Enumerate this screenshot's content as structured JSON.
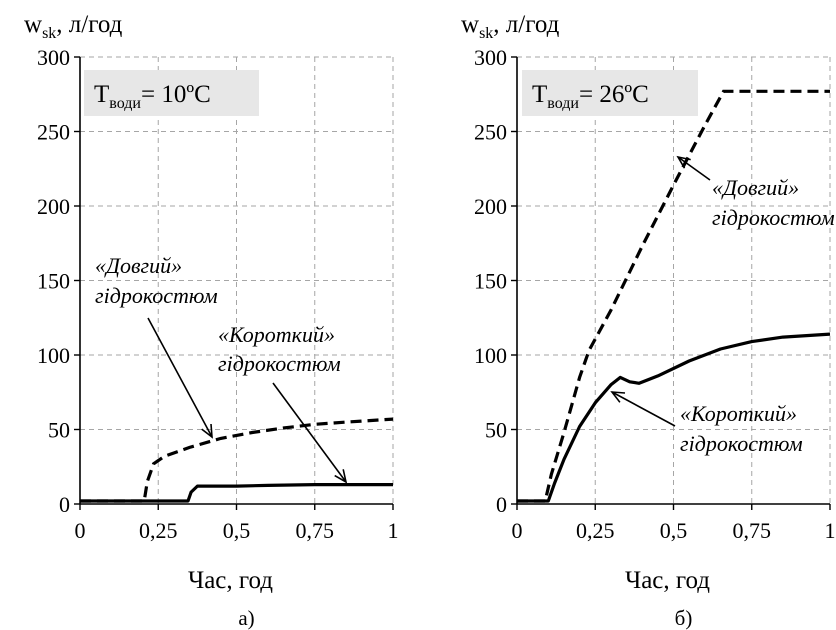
{
  "chart_data": [
    {
      "type": "line",
      "ylabel_main": "w",
      "ylabel_sub": "sk",
      "ylabel_rest": ", л/год",
      "xlabel": "Час, год",
      "caption": "а)",
      "condition_prefix": "T",
      "condition_sub": "води",
      "condition_value": "= 10ºC",
      "xlim": [
        0,
        1
      ],
      "ylim": [
        0,
        300
      ],
      "x_ticks": [
        "0",
        "0,25",
        "0,5",
        "0,75",
        "1"
      ],
      "y_ticks": [
        "0",
        "50",
        "100",
        "150",
        "200",
        "250",
        "300"
      ],
      "grid": true,
      "series": [
        {
          "label_line1": "«Довгий»",
          "label_line2": "гідрокостюм",
          "style": "dashed",
          "points": [
            [
              0,
              2
            ],
            [
              0.205,
              2
            ],
            [
              0.215,
              15
            ],
            [
              0.235,
              27
            ],
            [
              0.27,
              32
            ],
            [
              0.35,
              38
            ],
            [
              0.45,
              44
            ],
            [
              0.55,
              48
            ],
            [
              0.65,
              51
            ],
            [
              0.75,
              53.5
            ],
            [
              0.85,
              55
            ],
            [
              1,
              57
            ]
          ]
        },
        {
          "label_line1": "«Короткий»",
          "label_line2": "гідрокостюм",
          "style": "solid",
          "points": [
            [
              0,
              2
            ],
            [
              0.345,
              2
            ],
            [
              0.355,
              8
            ],
            [
              0.375,
              12
            ],
            [
              0.4,
              12
            ],
            [
              0.5,
              12
            ],
            [
              0.6,
              12.5
            ],
            [
              0.75,
              13
            ],
            [
              0.85,
              13
            ],
            [
              1,
              13
            ]
          ]
        }
      ]
    },
    {
      "type": "line",
      "ylabel_main": "w",
      "ylabel_sub": "sk",
      "ylabel_rest": ", л/год",
      "xlabel": "Час, год",
      "caption": "б)",
      "condition_prefix": "T",
      "condition_sub": "води",
      "condition_value": "= 26ºC",
      "xlim": [
        0,
        1
      ],
      "ylim": [
        0,
        300
      ],
      "x_ticks": [
        "0",
        "0,25",
        "0,5",
        "0,75",
        "1"
      ],
      "y_ticks": [
        "0",
        "50",
        "100",
        "150",
        "200",
        "250",
        "300"
      ],
      "grid": true,
      "series": [
        {
          "label_line1": "«Довгий»",
          "label_line2": "гідрокостюм",
          "style": "dashed",
          "points": [
            [
              0,
              2
            ],
            [
              0.09,
              2
            ],
            [
              0.11,
              20
            ],
            [
              0.15,
              48
            ],
            [
              0.2,
              85
            ],
            [
              0.23,
              103
            ],
            [
              0.3,
              130
            ],
            [
              0.4,
              173
            ],
            [
              0.5,
              214
            ],
            [
              0.6,
              254
            ],
            [
              0.66,
              277
            ],
            [
              0.8,
              277
            ],
            [
              1,
              277
            ]
          ]
        },
        {
          "label_line1": "«Короткий»",
          "label_line2": "гідрокостюм",
          "style": "solid",
          "points": [
            [
              0,
              2
            ],
            [
              0.1,
              2
            ],
            [
              0.12,
              14
            ],
            [
              0.15,
              30
            ],
            [
              0.2,
              52
            ],
            [
              0.25,
              68
            ],
            [
              0.3,
              80
            ],
            [
              0.33,
              85
            ],
            [
              0.36,
              82
            ],
            [
              0.39,
              81
            ],
            [
              0.45,
              86
            ],
            [
              0.55,
              96
            ],
            [
              0.65,
              104
            ],
            [
              0.75,
              109
            ],
            [
              0.85,
              112
            ],
            [
              1,
              114
            ]
          ]
        }
      ]
    }
  ]
}
